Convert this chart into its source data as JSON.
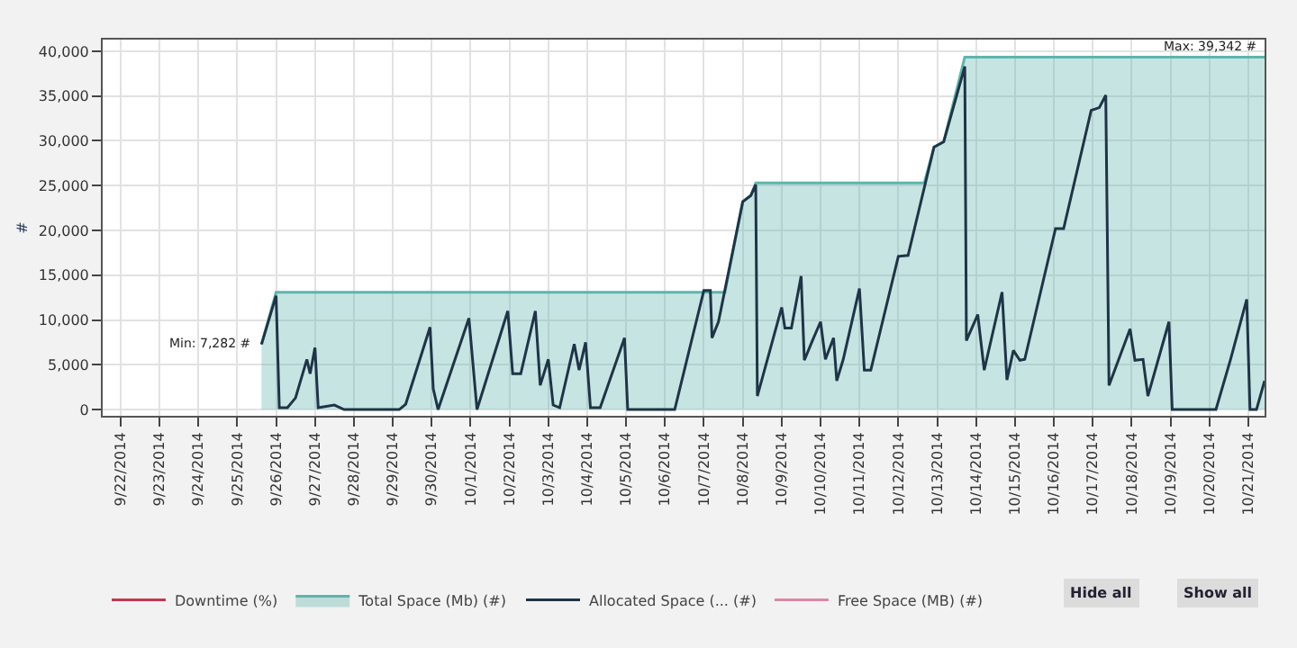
{
  "chart_data": {
    "type": "line",
    "ylabel": "#",
    "legend": "bottom",
    "grid": true,
    "marker": "none",
    "line_style": "solid",
    "xlim": [
      "2014-09-21T13:00",
      "2014-10-21T10:00"
    ],
    "xticks": [
      {
        "value": "2014-09-22",
        "label": "9/22/2014"
      },
      {
        "value": "2014-09-23",
        "label": "9/23/2014"
      },
      {
        "value": "2014-09-24",
        "label": "9/24/2014"
      },
      {
        "value": "2014-09-25",
        "label": "9/25/2014"
      },
      {
        "value": "2014-09-26",
        "label": "9/26/2014"
      },
      {
        "value": "2014-09-27",
        "label": "9/27/2014"
      },
      {
        "value": "2014-09-28",
        "label": "9/28/2014"
      },
      {
        "value": "2014-09-29",
        "label": "9/29/2014"
      },
      {
        "value": "2014-09-30",
        "label": "9/30/2014"
      },
      {
        "value": "2014-10-01",
        "label": "10/1/2014"
      },
      {
        "value": "2014-10-02",
        "label": "10/2/2014"
      },
      {
        "value": "2014-10-03",
        "label": "10/3/2014"
      },
      {
        "value": "2014-10-04",
        "label": "10/4/2014"
      },
      {
        "value": "2014-10-05",
        "label": "10/5/2014"
      },
      {
        "value": "2014-10-06",
        "label": "10/6/2014"
      },
      {
        "value": "2014-10-07",
        "label": "10/7/2014"
      },
      {
        "value": "2014-10-08",
        "label": "10/8/2014"
      },
      {
        "value": "2014-10-09",
        "label": "10/9/2014"
      },
      {
        "value": "2014-10-10",
        "label": "10/10/2014"
      },
      {
        "value": "2014-10-11",
        "label": "10/11/2014"
      },
      {
        "value": "2014-10-12",
        "label": "10/12/2014"
      },
      {
        "value": "2014-10-13",
        "label": "10/13/2014"
      },
      {
        "value": "2014-10-14",
        "label": "10/14/2014"
      },
      {
        "value": "2014-10-15",
        "label": "10/15/2014"
      },
      {
        "value": "2014-10-16",
        "label": "10/16/2014"
      },
      {
        "value": "2014-10-17",
        "label": "10/17/2014"
      },
      {
        "value": "2014-10-18",
        "label": "10/18/2014"
      },
      {
        "value": "2014-10-19",
        "label": "10/19/2014"
      },
      {
        "value": "2014-10-20",
        "label": "10/20/2014"
      },
      {
        "value": "2014-10-21",
        "label": "10/21/2014"
      }
    ],
    "ylim": [
      -700,
      41300
    ],
    "yticks": [
      0,
      {
        "value": 5000,
        "label": "5,000"
      },
      {
        "value": 10000,
        "label": "10,000"
      },
      {
        "value": 15000,
        "label": "15,000"
      },
      {
        "value": 20000,
        "label": "20,000"
      },
      {
        "value": 25000,
        "label": "25,000"
      },
      {
        "value": 30000,
        "label": "30,000"
      },
      {
        "value": 35000,
        "label": "35,000"
      },
      {
        "value": 40000,
        "label": "40,000"
      }
    ],
    "series": [
      {
        "name": "Downtime (%)",
        "color": "#c0394b"
      },
      {
        "name": "Total Space (Mb) (#)",
        "type": "area",
        "color": "#5db5ad",
        "x": [
          "2014-09-25T15:00",
          "2014-09-26T00:00",
          "2014-10-07T13:00",
          "2014-10-08T00:00",
          "2014-10-08T05:00",
          "2014-10-08T08:00",
          "2014-10-12T16:00",
          "2014-10-12T22:00",
          "2014-10-13T04:00",
          "2014-10-13T17:00",
          "2014-10-21T10:00"
        ],
        "values": [
          7282,
          13100,
          13100,
          23200,
          23900,
          25300,
          25300,
          29300,
          29900,
          39342,
          39342
        ]
      },
      {
        "name": "Allocated Space (... (#)",
        "color": "#1f3447",
        "x": [
          "2014-09-25T15:00",
          "2014-09-26T00:00",
          "2014-09-26T02:00",
          "2014-09-26T07:00",
          "2014-09-26T12:00",
          "2014-09-26T19:00",
          "2014-09-26T21:00",
          "2014-09-27T00:00",
          "2014-09-27T02:00",
          "2014-09-27T12:00",
          "2014-09-27T18:00",
          "2014-09-29T04:00",
          "2014-09-29T08:00",
          "2014-09-29T23:00",
          "2014-09-30T01:00",
          "2014-09-30T04:00",
          "2014-09-30T23:00",
          "2014-10-01T04:00",
          "2014-10-01T23:00",
          "2014-10-02T02:00",
          "2014-10-02T07:00",
          "2014-10-02T16:00",
          "2014-10-02T19:00",
          "2014-10-03T00:00",
          "2014-10-03T03:00",
          "2014-10-03T07:00",
          "2014-10-03T16:00",
          "2014-10-03T19:00",
          "2014-10-03T23:00",
          "2014-10-04T02:00",
          "2014-10-04T08:00",
          "2014-10-04T23:00",
          "2014-10-05T01:00",
          "2014-10-06T06:00",
          "2014-10-07T00:00",
          "2014-10-07T04:00",
          "2014-10-07T05:00",
          "2014-10-07T09:00",
          "2014-10-08T00:00",
          "2014-10-08T05:00",
          "2014-10-08T08:00",
          "2014-10-08T09:00",
          "2014-10-09T00:00",
          "2014-10-09T02:00",
          "2014-10-09T06:00",
          "2014-10-09T12:00",
          "2014-10-09T14:00",
          "2014-10-09T19:00",
          "2014-10-10T00:00",
          "2014-10-10T03:00",
          "2014-10-10T08:00",
          "2014-10-10T10:00",
          "2014-10-10T14:00",
          "2014-10-11T00:00",
          "2014-10-11T03:00",
          "2014-10-11T07:00",
          "2014-10-12T00:00",
          "2014-10-12T06:00",
          "2014-10-12T22:00",
          "2014-10-13T04:00",
          "2014-10-13T17:00",
          "2014-10-13T18:00",
          "2014-10-14T01:00",
          "2014-10-14T05:00",
          "2014-10-14T16:00",
          "2014-10-14T19:00",
          "2014-10-14T23:00",
          "2014-10-15T03:00",
          "2014-10-15T06:00",
          "2014-10-16T01:00",
          "2014-10-16T06:00",
          "2014-10-16T23:00",
          "2014-10-17T04:00",
          "2014-10-17T08:00",
          "2014-10-17T10:00",
          "2014-10-17T23:00",
          "2014-10-18T02:00",
          "2014-10-18T07:00",
          "2014-10-18T10:00",
          "2014-10-18T23:00",
          "2014-10-19T01:00",
          "2014-10-20T04:00",
          "2014-10-20T13:00",
          "2014-10-20T23:00",
          "2014-10-21T01:00",
          "2014-10-21T05:00",
          "2014-10-21T10:00"
        ],
        "values": [
          7282,
          12700,
          200,
          200,
          1300,
          5600,
          4000,
          6900,
          200,
          500,
          0,
          0,
          600,
          9200,
          2300,
          0,
          10200,
          0,
          11000,
          4000,
          4000,
          11000,
          2700,
          5600,
          500,
          200,
          7300,
          4400,
          7500,
          200,
          200,
          8000,
          0,
          0,
          13300,
          13300,
          8000,
          9800,
          23200,
          23900,
          25100,
          1500,
          11400,
          9100,
          9100,
          14900,
          5500,
          7700,
          9800,
          5600,
          8000,
          3200,
          5600,
          13500,
          4400,
          4400,
          17100,
          17200,
          29300,
          29900,
          38300,
          7700,
          10600,
          4400,
          13100,
          3300,
          6600,
          5500,
          5600,
          20200,
          20200,
          33400,
          33700,
          35100,
          2700,
          9000,
          5500,
          5600,
          1500,
          9800,
          0,
          0,
          5600,
          12300,
          0,
          0,
          3200
        ]
      },
      {
        "name": "Free Space (MB) (#)",
        "color": "#d98aa6"
      }
    ],
    "annotations": [
      {
        "text": "Min: 7,282 #",
        "x": "2014-09-25T15:00",
        "y": 7282
      },
      {
        "text": "Max: 39,342 #",
        "x": "2014-10-21T10:00",
        "y": 39342
      },
      "Hide all",
      "Show all"
    ]
  }
}
